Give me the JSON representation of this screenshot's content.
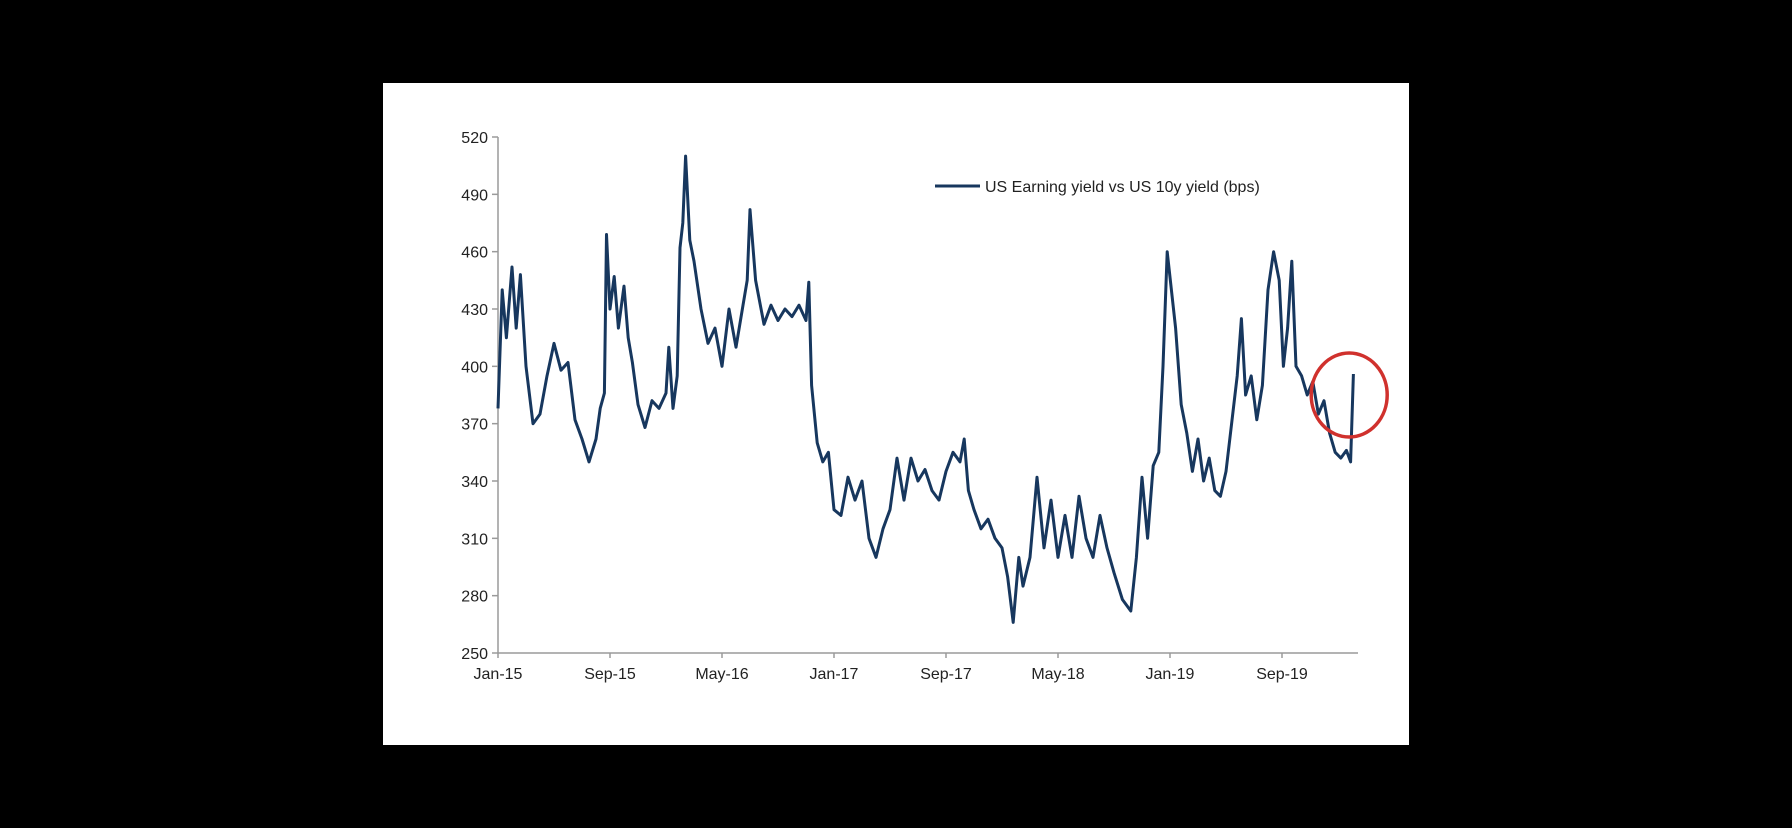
{
  "chart_data": {
    "type": "line",
    "title": "",
    "xlabel": "",
    "ylabel": "",
    "ylim": [
      250,
      520
    ],
    "yticks": [
      250,
      280,
      310,
      340,
      370,
      400,
      430,
      460,
      490,
      520
    ],
    "x_unit": "months since Jan-15",
    "xlim": [
      0,
      62
    ],
    "xticks": [
      {
        "label": "Jan-15",
        "x": 0
      },
      {
        "label": "Sep-15",
        "x": 8
      },
      {
        "label": "May-16",
        "x": 16
      },
      {
        "label": "Jan-17",
        "x": 24
      },
      {
        "label": "Sep-17",
        "x": 32
      },
      {
        "label": "May-18",
        "x": 40
      },
      {
        "label": "Jan-19",
        "x": 48
      },
      {
        "label": "Sep-19",
        "x": 56
      }
    ],
    "legend": {
      "placement": "top-right",
      "entries": [
        "US Earning yield vs US 10y yield (bps)"
      ]
    },
    "grid": false,
    "series": [
      {
        "name": "US Earning yield vs US 10y yield (bps)",
        "color": "#17375e",
        "points": [
          [
            0,
            378
          ],
          [
            0.3,
            440
          ],
          [
            0.6,
            415
          ],
          [
            1,
            452
          ],
          [
            1.3,
            420
          ],
          [
            1.6,
            448
          ],
          [
            2,
            400
          ],
          [
            2.5,
            370
          ],
          [
            3,
            375
          ],
          [
            3.5,
            395
          ],
          [
            4,
            412
          ],
          [
            4.5,
            398
          ],
          [
            5,
            402
          ],
          [
            5.5,
            372
          ],
          [
            6,
            362
          ],
          [
            6.5,
            350
          ],
          [
            7,
            362
          ],
          [
            7.3,
            378
          ],
          [
            7.6,
            386
          ],
          [
            7.75,
            469
          ],
          [
            8,
            430
          ],
          [
            8.3,
            447
          ],
          [
            8.6,
            420
          ],
          [
            9,
            442
          ],
          [
            9.3,
            415
          ],
          [
            9.6,
            402
          ],
          [
            10,
            380
          ],
          [
            10.5,
            368
          ],
          [
            11,
            382
          ],
          [
            11.5,
            378
          ],
          [
            12,
            386
          ],
          [
            12.2,
            410
          ],
          [
            12.5,
            378
          ],
          [
            12.8,
            395
          ],
          [
            13,
            462
          ],
          [
            13.2,
            475
          ],
          [
            13.4,
            510
          ],
          [
            13.7,
            466
          ],
          [
            14,
            455
          ],
          [
            14.5,
            430
          ],
          [
            15,
            412
          ],
          [
            15.5,
            420
          ],
          [
            16,
            400
          ],
          [
            16.5,
            430
          ],
          [
            17,
            410
          ],
          [
            17.5,
            432
          ],
          [
            17.8,
            445
          ],
          [
            18,
            482
          ],
          [
            18.4,
            445
          ],
          [
            19,
            422
          ],
          [
            19.5,
            432
          ],
          [
            20,
            424
          ],
          [
            20.5,
            430
          ],
          [
            21,
            426
          ],
          [
            21.5,
            432
          ],
          [
            22,
            424
          ],
          [
            22.2,
            444
          ],
          [
            22.4,
            390
          ],
          [
            22.8,
            360
          ],
          [
            23.2,
            350
          ],
          [
            23.6,
            355
          ],
          [
            24,
            325
          ],
          [
            24.5,
            322
          ],
          [
            25,
            342
          ],
          [
            25.5,
            330
          ],
          [
            26,
            340
          ],
          [
            26.5,
            310
          ],
          [
            27,
            300
          ],
          [
            27.5,
            315
          ],
          [
            28,
            325
          ],
          [
            28.5,
            352
          ],
          [
            29,
            330
          ],
          [
            29.5,
            352
          ],
          [
            30,
            340
          ],
          [
            30.5,
            346
          ],
          [
            31,
            335
          ],
          [
            31.5,
            330
          ],
          [
            32,
            345
          ],
          [
            32.5,
            355
          ],
          [
            33,
            350
          ],
          [
            33.3,
            362
          ],
          [
            33.6,
            335
          ],
          [
            34,
            325
          ],
          [
            34.5,
            315
          ],
          [
            35,
            320
          ],
          [
            35.5,
            310
          ],
          [
            36,
            305
          ],
          [
            36.4,
            290
          ],
          [
            36.8,
            266
          ],
          [
            37.2,
            300
          ],
          [
            37.5,
            285
          ],
          [
            38,
            300
          ],
          [
            38.5,
            342
          ],
          [
            39,
            305
          ],
          [
            39.5,
            330
          ],
          [
            40,
            300
          ],
          [
            40.5,
            322
          ],
          [
            41,
            300
          ],
          [
            41.5,
            332
          ],
          [
            42,
            310
          ],
          [
            42.5,
            300
          ],
          [
            43,
            322
          ],
          [
            43.5,
            305
          ],
          [
            44,
            292
          ],
          [
            44.6,
            278
          ],
          [
            45.2,
            272
          ],
          [
            45.6,
            300
          ],
          [
            46,
            342
          ],
          [
            46.4,
            310
          ],
          [
            46.8,
            348
          ],
          [
            47.2,
            355
          ],
          [
            47.5,
            400
          ],
          [
            47.8,
            460
          ],
          [
            48.1,
            440
          ],
          [
            48.4,
            420
          ],
          [
            48.8,
            380
          ],
          [
            49.2,
            365
          ],
          [
            49.6,
            345
          ],
          [
            50,
            362
          ],
          [
            50.4,
            340
          ],
          [
            50.8,
            352
          ],
          [
            51.2,
            335
          ],
          [
            51.6,
            332
          ],
          [
            52,
            345
          ],
          [
            52.4,
            370
          ],
          [
            52.8,
            395
          ],
          [
            53.1,
            425
          ],
          [
            53.4,
            385
          ],
          [
            53.8,
            395
          ],
          [
            54.2,
            372
          ],
          [
            54.6,
            390
          ],
          [
            55,
            440
          ],
          [
            55.4,
            460
          ],
          [
            55.8,
            445
          ],
          [
            56.1,
            400
          ],
          [
            56.4,
            420
          ],
          [
            56.7,
            455
          ],
          [
            57,
            400
          ],
          [
            57.4,
            395
          ],
          [
            57.8,
            385
          ],
          [
            58.2,
            392
          ],
          [
            58.6,
            375
          ],
          [
            59,
            382
          ],
          [
            59.4,
            365
          ],
          [
            59.8,
            355
          ],
          [
            60.2,
            352
          ],
          [
            60.6,
            356
          ],
          [
            60.9,
            350
          ],
          [
            61.1,
            396
          ]
        ]
      }
    ],
    "annotations": [
      {
        "type": "circle",
        "color": "#d0312d",
        "around_x": 60.8,
        "around_y": 385
      }
    ]
  }
}
